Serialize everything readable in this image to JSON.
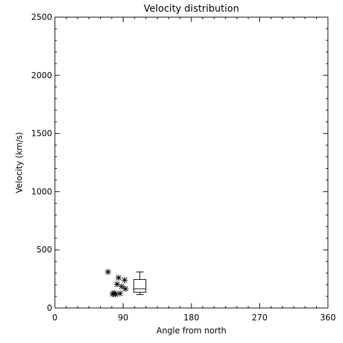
{
  "chart_data": {
    "type": "scatter",
    "title": "Velocity distribution",
    "xlabel": "Angle from north",
    "ylabel": "Velocity (km/s)",
    "xlim": [
      0,
      360
    ],
    "ylim": [
      0,
      2500
    ],
    "xticks": [
      0,
      90,
      180,
      270,
      360
    ],
    "yticks": [
      0,
      500,
      1000,
      1500,
      2000,
      2500
    ],
    "grid": false,
    "points": [
      {
        "x": 70,
        "y": 310
      },
      {
        "x": 84,
        "y": 260
      },
      {
        "x": 92,
        "y": 240
      },
      {
        "x": 82,
        "y": 205
      },
      {
        "x": 88,
        "y": 185
      },
      {
        "x": 93,
        "y": 165
      },
      {
        "x": 78,
        "y": 130
      },
      {
        "x": 86,
        "y": 125
      },
      {
        "x": 76,
        "y": 120
      },
      {
        "x": 80,
        "y": 118
      }
    ],
    "boxplot": {
      "x_center": 112,
      "x_half_width": 8,
      "whisker_low": 115,
      "q1": 135,
      "median": 165,
      "q3": 245,
      "whisker_high": 310
    }
  }
}
